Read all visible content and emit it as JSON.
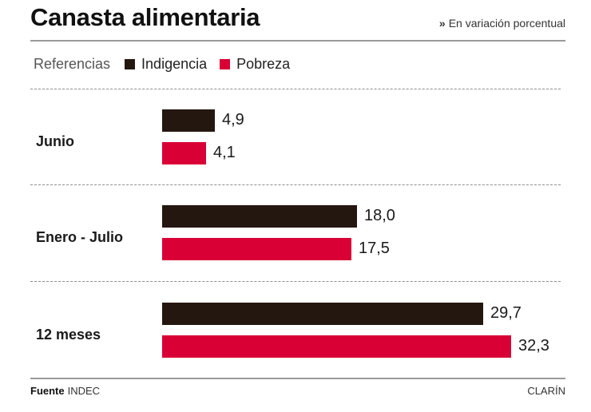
{
  "title": "Canasta alimentaria",
  "subtitle": "En variación porcentual",
  "subtitle_marker": "»",
  "legend": {
    "label": "Referencias",
    "items": [
      {
        "name": "Indigencia",
        "color": "#24170f"
      },
      {
        "name": "Pobreza",
        "color": "#d90035"
      }
    ]
  },
  "chart_data": {
    "type": "bar",
    "orientation": "horizontal",
    "title": "Canasta alimentaria",
    "subtitle": "En variación porcentual",
    "categories": [
      "Junio",
      "Enero - Julio",
      "12 meses"
    ],
    "series": [
      {
        "name": "Indigencia",
        "color": "#24170f",
        "values": [
          4.9,
          18.0,
          29.7
        ],
        "labels": [
          "4,9",
          "18,0",
          "29,7"
        ]
      },
      {
        "name": "Pobreza",
        "color": "#d90035",
        "values": [
          4.1,
          17.5,
          32.3
        ],
        "labels": [
          "4,1",
          "17,5",
          "32,3"
        ]
      }
    ],
    "xlim": [
      0,
      32.3
    ],
    "grid": false,
    "legend_position": "top-left"
  },
  "footer": {
    "source_label": "Fuente",
    "source_value": "INDEC",
    "credit": "CLARÍN"
  }
}
